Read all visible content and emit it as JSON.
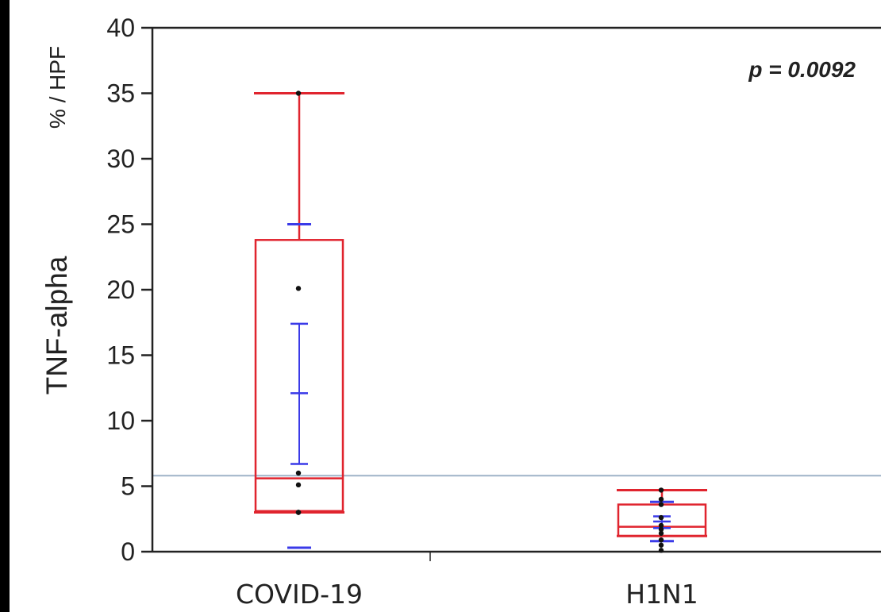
{
  "chart_data": {
    "type": "box",
    "yaxis": {
      "label_main": "TNF-alpha",
      "label_unit": "% / HPF",
      "ylim": [
        0,
        40
      ],
      "ticks": [
        0,
        5,
        10,
        15,
        20,
        25,
        30,
        35,
        40
      ],
      "tick_labels": [
        "0",
        "5",
        "10",
        "15",
        "20",
        "25",
        "30",
        "35",
        "40"
      ]
    },
    "categories": [
      "COVID-19",
      "H1N1"
    ],
    "annotation": "p = 0.0092",
    "reference_line": 5.8,
    "groups": [
      {
        "name": "COVID-19",
        "box": {
          "whisker_low": 3.0,
          "q1": 3.1,
          "median": 5.6,
          "q3": 23.8,
          "whisker_high": 35.0
        },
        "mean_ci": {
          "mean": 12.1,
          "ci_low": 6.7,
          "ci_high": 17.4
        },
        "sd": {
          "low": 0.3,
          "high": 25.0
        },
        "points": [
          35.0,
          20.1,
          6.0,
          5.1,
          3.0,
          3.0,
          3.0
        ]
      },
      {
        "name": "H1N1",
        "box": {
          "whisker_low": 1.2,
          "q1": 1.2,
          "median": 1.9,
          "q3": 3.6,
          "whisker_high": 4.7
        },
        "mean_ci": {
          "mean": 2.3,
          "ci_low": 1.8,
          "ci_high": 2.7
        },
        "sd": {
          "low": 0.8,
          "high": 3.8
        },
        "points": [
          4.7,
          4.0,
          3.6,
          2.6,
          2.0,
          1.7,
          1.4,
          0.9,
          0.5,
          0.1
        ]
      }
    ],
    "colors": {
      "box": "#e0242e",
      "mean": "#3a3ae8",
      "points": "#111111",
      "reference_line": "#9fb3c8",
      "axis": "#222222"
    }
  }
}
